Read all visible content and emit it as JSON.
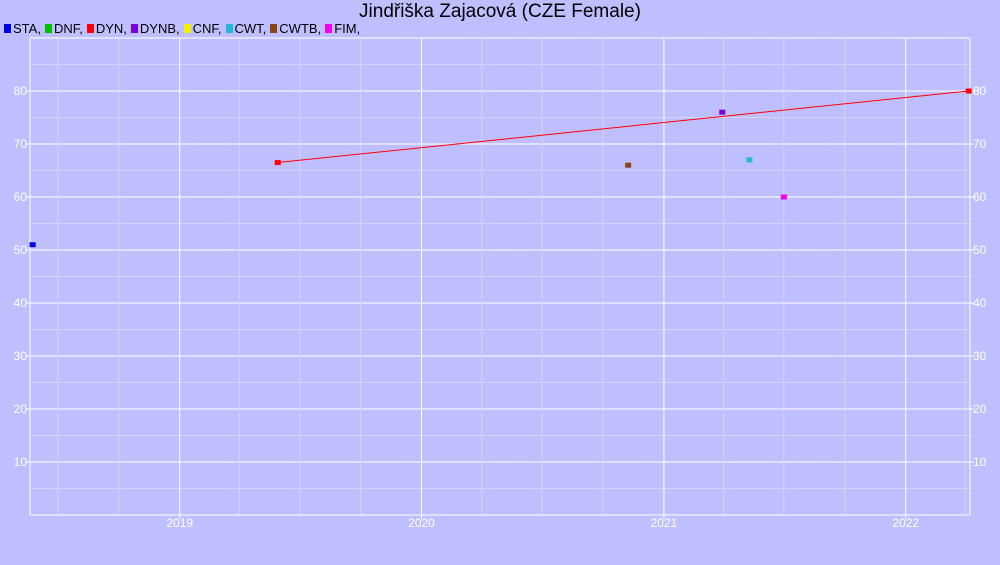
{
  "chart_data": {
    "type": "scatter",
    "title": "Jindřiška Zajacová (CZE Female)",
    "xlabel": "",
    "ylabel": "",
    "x_type": "date",
    "xlim": [
      "2018-05-20",
      "2022-04-08"
    ],
    "ylim": [
      0,
      90
    ],
    "y_ticks": [
      10,
      20,
      30,
      40,
      50,
      60,
      70,
      80
    ],
    "x_ticks": [
      "2019",
      "2020",
      "2021",
      "2022"
    ],
    "grid": true,
    "legend_position": "top-left",
    "legend": [
      {
        "name": "STA",
        "label": "STA,",
        "color": "#0000e0"
      },
      {
        "name": "DNF",
        "label": "DNF,",
        "color": "#00c000"
      },
      {
        "name": "DYN",
        "label": "DYN,",
        "color": "#ff0000"
      },
      {
        "name": "DYNB",
        "label": "DYNB,",
        "color": "#7a00e0"
      },
      {
        "name": "CNF",
        "label": "CNF,",
        "color": "#f0f000"
      },
      {
        "name": "CWT",
        "label": "CWT,",
        "color": "#22b8d8"
      },
      {
        "name": "CWTB",
        "label": "CWTB,",
        "color": "#8b4513"
      },
      {
        "name": "FIM",
        "label": "FIM,",
        "color": "#f000f0"
      }
    ],
    "series": [
      {
        "name": "STA",
        "color": "#0000e0",
        "points": [
          {
            "x": "2018-05-24",
            "y": 51
          }
        ]
      },
      {
        "name": "DYN",
        "color": "#ff0000",
        "line": true,
        "points": [
          {
            "x": "2019-05-29",
            "y": 66.5
          },
          {
            "x": "2022-04-06",
            "y": 80
          }
        ]
      },
      {
        "name": "CWTB",
        "color": "#8b4513",
        "points": [
          {
            "x": "2020-11-08",
            "y": 66
          }
        ]
      },
      {
        "name": "DYNB",
        "color": "#7a00e0",
        "points": [
          {
            "x": "2021-03-30",
            "y": 76
          }
        ]
      },
      {
        "name": "CWT",
        "color": "#22b8d8",
        "points": [
          {
            "x": "2021-05-10",
            "y": 67
          }
        ]
      },
      {
        "name": "FIM",
        "color": "#f000f0",
        "points": [
          {
            "x": "2021-07-01",
            "y": 60
          }
        ]
      }
    ]
  }
}
